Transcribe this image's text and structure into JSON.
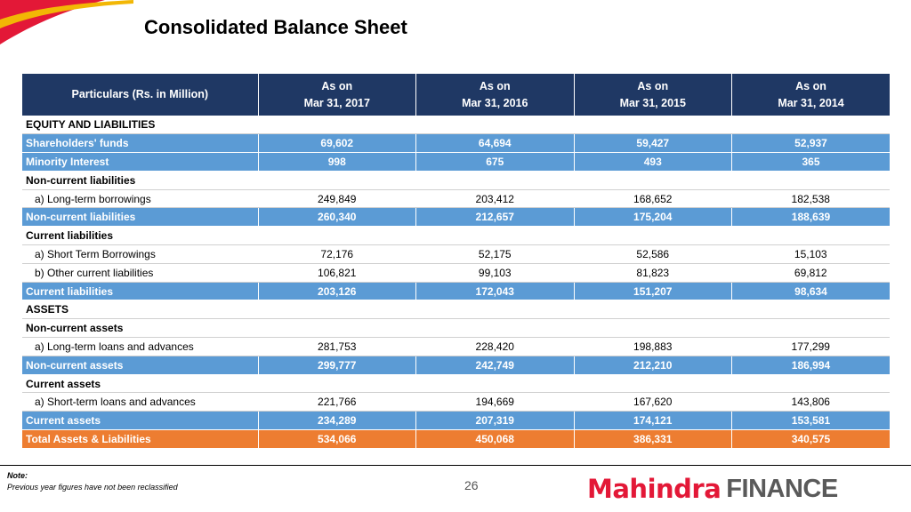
{
  "title": "Consolidated Balance Sheet",
  "brand_colors": {
    "header_navy": "#1f3864",
    "subtotal_blue": "#5b9bd5",
    "total_orange": "#ed7d31",
    "logo_red": "#e31837",
    "logo_grey": "#5a5a5a"
  },
  "table": {
    "header": {
      "particulars": "Particulars (Rs. in Million)",
      "columns": [
        {
          "l1": "As on",
          "l2": "Mar 31, 2017"
        },
        {
          "l1": "As on",
          "l2": "Mar 31, 2016"
        },
        {
          "l1": "As on",
          "l2": "Mar 31, 2015"
        },
        {
          "l1": "As on",
          "l2": "Mar 31, 2014"
        }
      ]
    },
    "rows": [
      {
        "type": "section",
        "label": "EQUITY AND LIABILITIES",
        "values": [
          "",
          "",
          "",
          ""
        ]
      },
      {
        "type": "subtotal",
        "label": "Shareholders' funds",
        "values": [
          "69,602",
          "64,694",
          "59,427",
          "52,937"
        ]
      },
      {
        "type": "subtotal",
        "label": "Minority Interest",
        "values": [
          "998",
          "675",
          "493",
          "365"
        ]
      },
      {
        "type": "section",
        "label": "Non-current liabilities",
        "values": [
          "",
          "",
          "",
          ""
        ]
      },
      {
        "type": "item",
        "label": "a) Long-term borrowings",
        "values": [
          "249,849",
          "203,412",
          "168,652",
          "182,538"
        ]
      },
      {
        "type": "subtotal",
        "label": "Non-current liabilities",
        "values": [
          "260,340",
          "212,657",
          "175,204",
          "188,639"
        ]
      },
      {
        "type": "section",
        "label": "Current liabilities",
        "values": [
          "",
          "",
          "",
          ""
        ]
      },
      {
        "type": "item",
        "label": "a) Short Term Borrowings",
        "values": [
          "72,176",
          "52,175",
          "52,586",
          "15,103"
        ]
      },
      {
        "type": "item",
        "label": "b) Other current liabilities",
        "values": [
          "106,821",
          "99,103",
          "81,823",
          "69,812"
        ]
      },
      {
        "type": "subtotal",
        "label": "Current liabilities",
        "values": [
          "203,126",
          "172,043",
          "151,207",
          "98,634"
        ]
      },
      {
        "type": "section",
        "label": "ASSETS",
        "values": [
          "",
          "",
          "",
          ""
        ]
      },
      {
        "type": "section",
        "label": "Non-current assets",
        "values": [
          "",
          "",
          "",
          ""
        ]
      },
      {
        "type": "item",
        "label": "a) Long-term loans and advances",
        "values": [
          "281,753",
          "228,420",
          "198,883",
          "177,299"
        ]
      },
      {
        "type": "subtotal",
        "label": "Non-current assets",
        "values": [
          "299,777",
          "242,749",
          "212,210",
          "186,994"
        ]
      },
      {
        "type": "section",
        "label": "Current assets",
        "values": [
          "",
          "",
          "",
          ""
        ]
      },
      {
        "type": "item",
        "label": "a) Short-term loans and advances",
        "values": [
          "221,766",
          "194,669",
          "167,620",
          "143,806"
        ]
      },
      {
        "type": "subtotal",
        "label": "Current assets",
        "values": [
          "234,289",
          "207,319",
          "174,121",
          "153,581"
        ]
      },
      {
        "type": "total",
        "label": "Total Assets & Liabilities",
        "values": [
          "534,066",
          "450,068",
          "386,331",
          "340,575"
        ]
      }
    ]
  },
  "footer": {
    "note_label": "Note:",
    "note_text": "Previous year figures have not been reclassified",
    "page_number": "26",
    "logo_brand": "Mahindra",
    "logo_sub": "FINANCE"
  }
}
